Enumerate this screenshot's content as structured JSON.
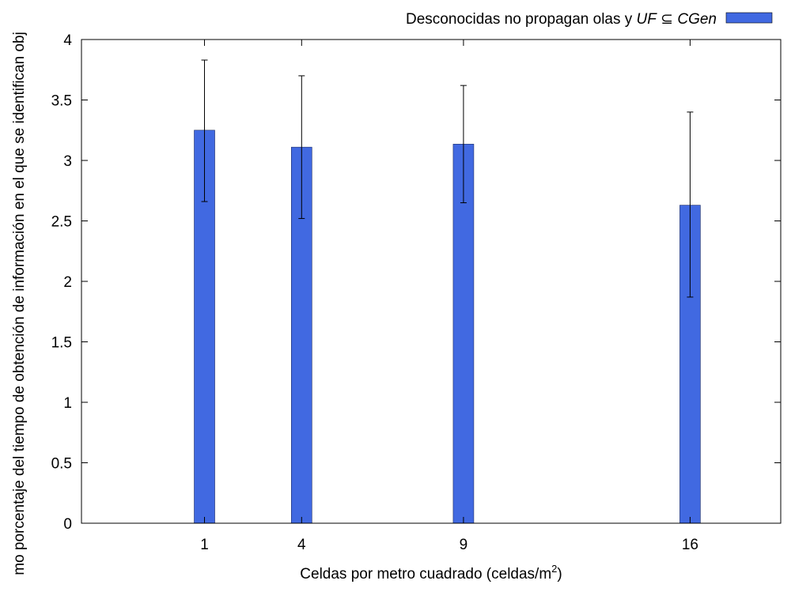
{
  "chart_data": {
    "type": "bar",
    "title": "",
    "xlabel": "Celdas por metro cuadrado (celdas/m",
    "xlabel_sup": "2",
    "xlabel_close": ")",
    "ylabel": "mo porcentaje del tiempo de obtención de información en el que se identifican obj",
    "ylim": [
      0,
      4
    ],
    "yticks": [
      "0",
      "0.5",
      "1",
      "1.5",
      "2",
      "2.5",
      "3",
      "3.5",
      "4"
    ],
    "xlim": [
      -2.8,
      18.8
    ],
    "x": [
      1,
      4,
      9,
      16
    ],
    "xtick_labels": [
      "1",
      "4",
      "9",
      "16"
    ],
    "grid": false,
    "legend_position": "top-right",
    "series": [
      {
        "legend": {
          "prefix": "Desconocidas no propagan olas y ",
          "uf": "UF",
          "subset": " ⊆ ",
          "cgen": "CGen"
        },
        "color": "#4169e1",
        "values": [
          3.25,
          3.11,
          3.135,
          2.63
        ],
        "error_low": [
          2.66,
          2.52,
          2.65,
          1.87
        ],
        "error_high": [
          3.83,
          3.7,
          3.62,
          3.4
        ]
      }
    ]
  }
}
